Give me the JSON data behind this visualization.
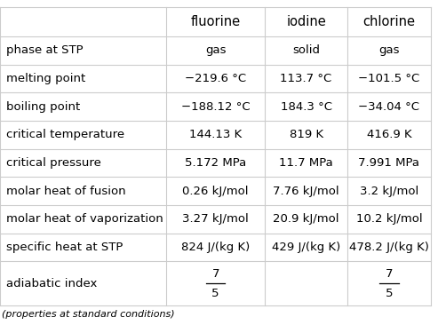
{
  "columns": [
    "",
    "fluorine",
    "iodine",
    "chlorine"
  ],
  "rows": [
    {
      "property": "phase at STP",
      "fluorine": "gas",
      "iodine": "solid",
      "chlorine": "gas"
    },
    {
      "property": "melting point",
      "fluorine": "−219.6 °C",
      "iodine": "113.7 °C",
      "chlorine": "−101.5 °C"
    },
    {
      "property": "boiling point",
      "fluorine": "−188.12 °C",
      "iodine": "184.3 °C",
      "chlorine": "−34.04 °C"
    },
    {
      "property": "critical temperature",
      "fluorine": "144.13 K",
      "iodine": "819 K",
      "chlorine": "416.9 K"
    },
    {
      "property": "critical pressure",
      "fluorine": "5.172 MPa",
      "iodine": "11.7 MPa",
      "chlorine": "7.991 MPa"
    },
    {
      "property": "molar heat of fusion",
      "fluorine": "0.26 kJ/mol",
      "iodine": "7.76 kJ/mol",
      "chlorine": "3.2 kJ/mol"
    },
    {
      "property": "molar heat of vaporization",
      "fluorine": "3.27 kJ/mol",
      "iodine": "20.9 kJ/mol",
      "chlorine": "10.2 kJ/mol"
    },
    {
      "property": "specific heat at STP",
      "fluorine": "824 J/(kg K)",
      "iodine": "429 J/(kg K)",
      "chlorine": "478.2 J/(kg K)"
    },
    {
      "property": "adiabatic index",
      "fluorine": "7/5",
      "iodine": "",
      "chlorine": "7/5"
    }
  ],
  "footer": "(properties at standard conditions)",
  "background_color": "#ffffff",
  "border_color": "#cccccc",
  "text_color": "#000000",
  "font_size": 9.5,
  "header_font_size": 10.5
}
